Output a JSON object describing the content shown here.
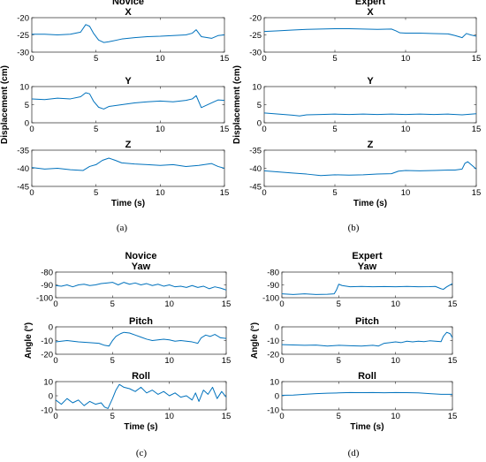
{
  "colors": {
    "line": "#0072BD",
    "axis": "#262626"
  },
  "panel_labels": [
    "(a)",
    "(b)",
    "(c)",
    "(d)"
  ],
  "chart_data": [
    {
      "id": "a1",
      "type": "line",
      "group_title": "Novice",
      "title": "X",
      "xlabel": "",
      "ylabel": "",
      "xlim": [
        0,
        15
      ],
      "ylim": [
        -30,
        -20
      ],
      "xticks": [
        0,
        5,
        10,
        15
      ],
      "yticks": [
        -20,
        -25,
        -30
      ],
      "series": [
        {
          "x": [
            0,
            1,
            2,
            3,
            3.8,
            4.2,
            4.5,
            4.8,
            5.2,
            5.6,
            6,
            7,
            8,
            9,
            10,
            11,
            12,
            12.5,
            12.8,
            13.2,
            14,
            14.5,
            15
          ],
          "y": [
            -24.8,
            -24.8,
            -25,
            -24.8,
            -24.2,
            -22,
            -22.5,
            -24.5,
            -26.5,
            -27.2,
            -27,
            -26.2,
            -25.8,
            -25.5,
            -25.4,
            -25.2,
            -25,
            -24.5,
            -23.5,
            -25.5,
            -26,
            -25.2,
            -25
          ]
        }
      ]
    },
    {
      "id": "a2",
      "type": "line",
      "group_title": "",
      "title": "Y",
      "xlabel": "",
      "ylabel": "Displacement (cm)",
      "xlim": [
        0,
        15
      ],
      "ylim": [
        0,
        10
      ],
      "xticks": [
        0,
        5,
        10,
        15
      ],
      "yticks": [
        10,
        5,
        0
      ],
      "series": [
        {
          "x": [
            0,
            1,
            2,
            3,
            3.8,
            4.2,
            4.5,
            4.8,
            5.2,
            5.6,
            6,
            7,
            8,
            9,
            10,
            11,
            12,
            12.5,
            12.8,
            13.2,
            14,
            14.5,
            15
          ],
          "y": [
            6.6,
            6.4,
            6.8,
            6.6,
            7.2,
            8.3,
            8,
            6,
            4.3,
            3.8,
            4.5,
            5,
            5.5,
            5.8,
            6,
            5.8,
            6.2,
            6.6,
            7.5,
            4.2,
            5.5,
            6.3,
            6.2
          ]
        }
      ]
    },
    {
      "id": "a3",
      "type": "line",
      "group_title": "",
      "title": "Z",
      "xlabel": "Time (s)",
      "ylabel": "",
      "xlim": [
        0,
        15
      ],
      "ylim": [
        -45,
        -35
      ],
      "xticks": [
        0,
        5,
        10,
        15
      ],
      "yticks": [
        -35,
        -40,
        -45
      ],
      "series": [
        {
          "x": [
            0,
            1,
            2,
            3,
            4,
            4.5,
            5,
            5.5,
            6,
            6.5,
            7,
            8,
            9,
            10,
            11,
            12,
            13,
            14,
            14.5,
            15
          ],
          "y": [
            -39.8,
            -40.2,
            -40,
            -40.4,
            -40.6,
            -39.5,
            -39,
            -37.8,
            -37.2,
            -37.8,
            -38.5,
            -38.8,
            -39,
            -39.2,
            -39,
            -39.5,
            -39.2,
            -38.7,
            -39.5,
            -40
          ]
        }
      ]
    },
    {
      "id": "b1",
      "type": "line",
      "group_title": "Expert",
      "title": "X",
      "xlabel": "",
      "ylabel": "",
      "xlim": [
        0,
        15
      ],
      "ylim": [
        -30,
        -20
      ],
      "xticks": [
        0,
        5,
        10,
        15
      ],
      "yticks": [
        -20,
        -25,
        -30
      ],
      "series": [
        {
          "x": [
            0,
            1,
            2,
            3,
            4,
            5,
            6,
            7,
            8,
            9,
            9.3,
            9.6,
            10,
            11,
            12,
            13,
            13.5,
            14,
            14.3,
            14.6,
            15
          ],
          "y": [
            -24,
            -23.8,
            -23.6,
            -23.4,
            -23.3,
            -23.2,
            -23.2,
            -23.3,
            -23.4,
            -23.3,
            -23.8,
            -24.4,
            -24.5,
            -24.5,
            -24.6,
            -24.7,
            -25.2,
            -25.8,
            -24.6,
            -25,
            -25.4
          ]
        }
      ]
    },
    {
      "id": "b2",
      "type": "line",
      "group_title": "",
      "title": "Y",
      "xlabel": "",
      "ylabel": "Displacement (cm)",
      "xlim": [
        0,
        15
      ],
      "ylim": [
        0,
        10
      ],
      "xticks": [
        0,
        5,
        10,
        15
      ],
      "yticks": [
        10,
        5,
        0
      ],
      "series": [
        {
          "x": [
            0,
            1,
            2,
            2.5,
            3,
            4,
            5,
            6,
            7,
            8,
            9,
            10,
            11,
            12,
            13,
            14,
            15
          ],
          "y": [
            2.7,
            2.4,
            2.1,
            1.9,
            2.2,
            2.3,
            2.4,
            2.3,
            2.4,
            2.3,
            2.4,
            2.3,
            2.4,
            2.3,
            2.4,
            2.2,
            2.5
          ]
        }
      ]
    },
    {
      "id": "b3",
      "type": "line",
      "group_title": "",
      "title": "Z",
      "xlabel": "Time (s)",
      "ylabel": "",
      "xlim": [
        0,
        15
      ],
      "ylim": [
        -45,
        -35
      ],
      "xticks": [
        0,
        5,
        10,
        15
      ],
      "yticks": [
        -35,
        -40,
        -45
      ],
      "series": [
        {
          "x": [
            0,
            1,
            2,
            3,
            4,
            5,
            6,
            7,
            8,
            9,
            9.5,
            10,
            11,
            12,
            13,
            13.5,
            14,
            14.2,
            14.4,
            14.7,
            15
          ],
          "y": [
            -40.7,
            -41,
            -41.3,
            -41.6,
            -42,
            -41.8,
            -41.9,
            -41.8,
            -41.6,
            -41.5,
            -40.8,
            -40.6,
            -40.7,
            -40.6,
            -40.5,
            -40.5,
            -40.2,
            -38.6,
            -38.2,
            -39.2,
            -40.2
          ]
        }
      ]
    },
    {
      "id": "c1",
      "type": "line",
      "group_title": "Novice",
      "title": "Yaw",
      "xlabel": "",
      "ylabel": "",
      "xlim": [
        0,
        15
      ],
      "ylim": [
        -100,
        -80
      ],
      "xticks": [
        0,
        5,
        10,
        15
      ],
      "yticks": [
        -80,
        -90,
        -100
      ],
      "series": [
        {
          "x": [
            0,
            0.5,
            1,
            1.5,
            2,
            2.5,
            3,
            3.5,
            4,
            4.5,
            5,
            5.5,
            6,
            6.5,
            7,
            7.5,
            8,
            8.5,
            9,
            9.5,
            10,
            10.5,
            11,
            11.5,
            12,
            12.5,
            13,
            13.5,
            14,
            14.5,
            15
          ],
          "y": [
            -90.5,
            -91,
            -90,
            -91.5,
            -90,
            -89.5,
            -90.5,
            -90,
            -89,
            -88.5,
            -88,
            -90,
            -88,
            -89.5,
            -88.5,
            -90,
            -89,
            -90.5,
            -89.5,
            -91,
            -90,
            -91.5,
            -91,
            -92,
            -90.5,
            -92,
            -91,
            -93,
            -91.5,
            -92.5,
            -94
          ]
        }
      ]
    },
    {
      "id": "c2",
      "type": "line",
      "group_title": "",
      "title": "Pitch",
      "xlabel": "",
      "ylabel": "Angle (°)",
      "xlim": [
        0,
        15
      ],
      "ylim": [
        -20,
        0
      ],
      "xticks": [
        0,
        5,
        10,
        15
      ],
      "yticks": [
        0,
        -10,
        -20
      ],
      "series": [
        {
          "x": [
            0,
            1,
            2,
            3,
            3.8,
            4.3,
            4.7,
            5,
            5.3,
            5.7,
            6,
            6.5,
            7,
            7.5,
            8,
            8.5,
            9,
            9.5,
            10,
            10.5,
            11,
            11.5,
            12,
            12.5,
            12.8,
            13.2,
            13.6,
            14,
            14.5,
            15
          ],
          "y": [
            -11,
            -10,
            -11,
            -11.5,
            -12,
            -13.5,
            -14,
            -10,
            -7,
            -5,
            -4,
            -4.5,
            -6,
            -7.5,
            -9,
            -10,
            -9.5,
            -9,
            -9.5,
            -10.5,
            -10,
            -10.5,
            -11,
            -12,
            -8,
            -6,
            -7,
            -5.5,
            -8,
            -8.5
          ]
        }
      ]
    },
    {
      "id": "c3",
      "type": "line",
      "group_title": "",
      "title": "Roll",
      "xlabel": "Time (s)",
      "ylabel": "",
      "xlim": [
        0,
        15
      ],
      "ylim": [
        -10,
        10
      ],
      "xticks": [
        0,
        5,
        10,
        15
      ],
      "yticks": [
        10,
        0,
        -10
      ],
      "series": [
        {
          "x": [
            0,
            0.5,
            1,
            1.5,
            2,
            2.5,
            3,
            3.5,
            4,
            4.3,
            4.6,
            5,
            5.3,
            5.6,
            6,
            6.5,
            7,
            7.5,
            8,
            8.5,
            9,
            9.5,
            10,
            10.5,
            11,
            11.5,
            12,
            12.3,
            12.6,
            13,
            13.4,
            13.8,
            14.2,
            14.6,
            15
          ],
          "y": [
            -3,
            -6,
            -2,
            -5,
            -3,
            -7,
            -4,
            -6,
            -5,
            -8,
            -9,
            -2,
            4,
            8,
            6,
            5,
            3,
            6,
            2,
            4,
            1,
            3,
            0,
            2,
            -1,
            0,
            -3,
            2,
            -4,
            4,
            1,
            6,
            -2,
            3,
            -1
          ]
        }
      ]
    },
    {
      "id": "d1",
      "type": "line",
      "group_title": "Expert",
      "title": "Yaw",
      "xlabel": "",
      "ylabel": "",
      "xlim": [
        0,
        15
      ],
      "ylim": [
        -100,
        -80
      ],
      "xticks": [
        0,
        5,
        10,
        15
      ],
      "yticks": [
        -80,
        -90,
        -100
      ],
      "series": [
        {
          "x": [
            0,
            1,
            2,
            3,
            4,
            4.6,
            4.8,
            5,
            5.3,
            6,
            7,
            8,
            9,
            10,
            11,
            12,
            13,
            13.5,
            14,
            14.2,
            14.5,
            15
          ],
          "y": [
            -97,
            -97.5,
            -97,
            -97.5,
            -97.3,
            -97,
            -94,
            -89.5,
            -90.5,
            -91.5,
            -91.2,
            -91.5,
            -91.3,
            -91.5,
            -91.2,
            -91.5,
            -91.4,
            -91.2,
            -93,
            -93.5,
            -91.5,
            -89
          ]
        }
      ]
    },
    {
      "id": "d2",
      "type": "line",
      "group_title": "",
      "title": "Pitch",
      "xlabel": "",
      "ylabel": "Angle (°)",
      "xlim": [
        0,
        15
      ],
      "ylim": [
        -20,
        0
      ],
      "xticks": [
        0,
        5,
        10,
        15
      ],
      "yticks": [
        0,
        -10,
        -20
      ],
      "series": [
        {
          "x": [
            0,
            1,
            2,
            3,
            4,
            5,
            6,
            7,
            8,
            8.5,
            9,
            9.5,
            10,
            10.5,
            11,
            11.5,
            12,
            12.5,
            13,
            13.5,
            14,
            14.2,
            14.5,
            14.8,
            15
          ],
          "y": [
            -13,
            -13.2,
            -13.5,
            -13.3,
            -14,
            -13.5,
            -13.8,
            -14,
            -13.5,
            -14,
            -12,
            -11.5,
            -11,
            -11.5,
            -10.5,
            -11,
            -10.5,
            -10.8,
            -10.2,
            -10.5,
            -10.8,
            -7,
            -4,
            -5,
            -8
          ]
        }
      ]
    },
    {
      "id": "d3",
      "type": "line",
      "group_title": "",
      "title": "Roll",
      "xlabel": "Time (s)",
      "ylabel": "",
      "xlim": [
        0,
        15
      ],
      "ylim": [
        -10,
        10
      ],
      "xticks": [
        0,
        5,
        10,
        15
      ],
      "yticks": [
        10,
        0,
        -10
      ],
      "series": [
        {
          "x": [
            0,
            1,
            2,
            3,
            4,
            5,
            6,
            7,
            8,
            9,
            10,
            11,
            12,
            13,
            14,
            15
          ],
          "y": [
            0.3,
            0.5,
            1,
            1.5,
            1.8,
            2,
            2.3,
            2.2,
            2.3,
            2.1,
            2.3,
            2.2,
            2,
            1.5,
            1,
            1
          ]
        }
      ]
    }
  ]
}
